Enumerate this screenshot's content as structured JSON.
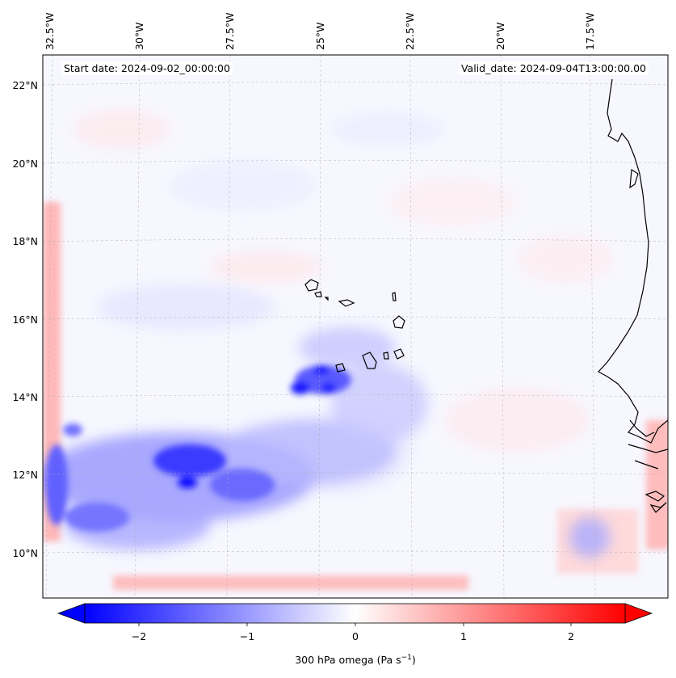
{
  "header": {
    "start_label": "Start date: 2024-09-02_00:00:00",
    "valid_label": "Valid_date: 2024-09-04T13:00:00.00"
  },
  "map": {
    "lon_labels": [
      "32.5°W",
      "30°W",
      "27.5°W",
      "25°W",
      "22.5°W",
      "20°W",
      "17.5°W"
    ],
    "lat_labels": [
      "22°N",
      "20°N",
      "18°N",
      "16°N",
      "14°N",
      "12°N",
      "10°N"
    ],
    "field": "300 hPa omega",
    "colormap": "bwr",
    "coastline_color": "#000000"
  },
  "colorbar": {
    "label_main": "300 hPa omega (Pa s",
    "label_exp": "−1",
    "label_close": ")",
    "ticks": [
      "−2",
      "−1",
      "0",
      "1",
      "2"
    ],
    "range": [
      -2.7,
      2.7
    ],
    "extend": "both"
  }
}
